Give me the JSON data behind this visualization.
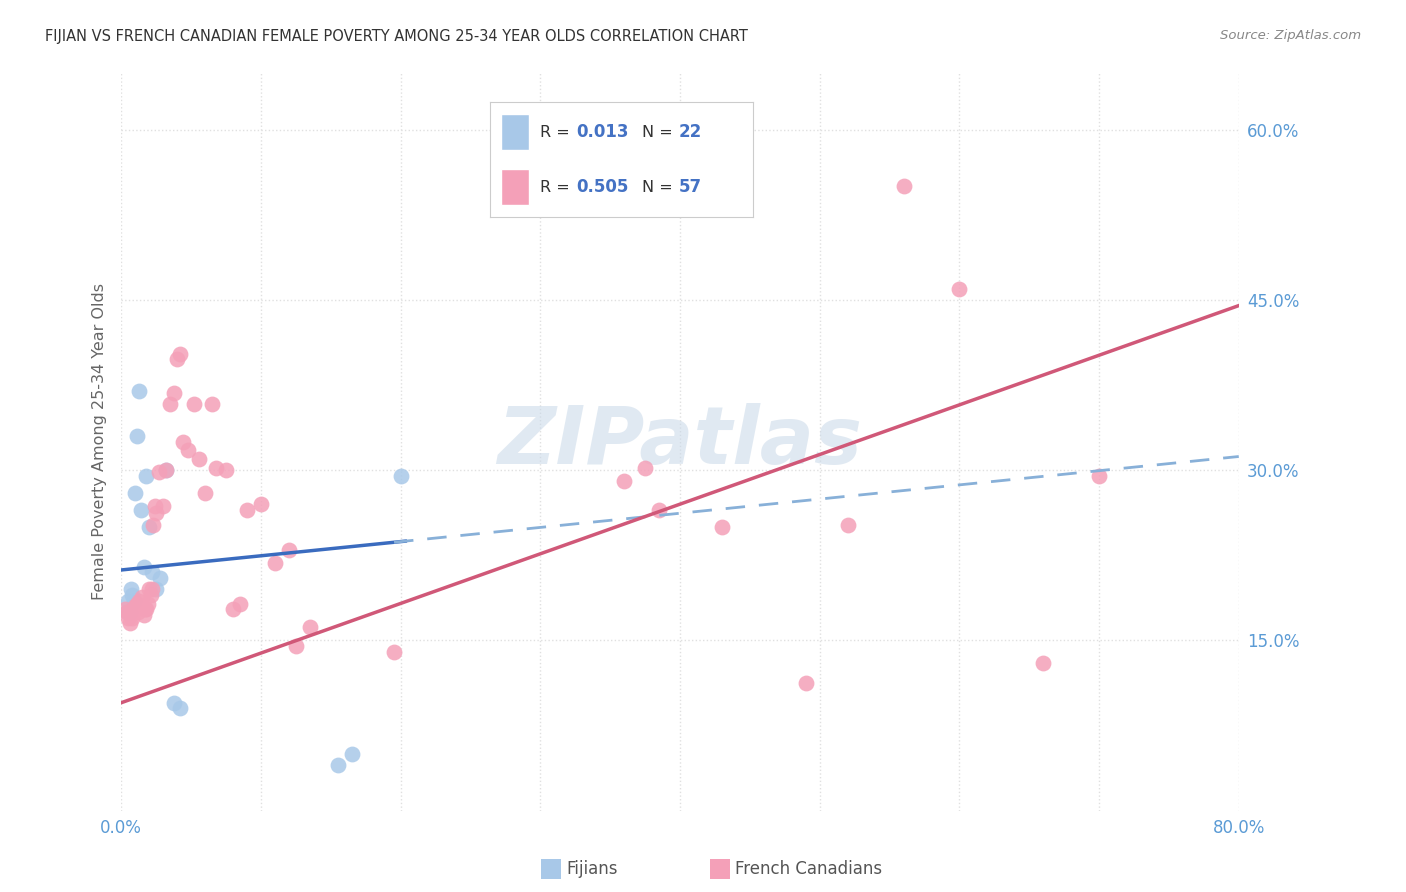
{
  "title": "FIJIAN VS FRENCH CANADIAN FEMALE POVERTY AMONG 25-34 YEAR OLDS CORRELATION CHART",
  "source": "Source: ZipAtlas.com",
  "ylabel": "Female Poverty Among 25-34 Year Olds",
  "xlim": [
    0,
    0.8
  ],
  "ylim": [
    0,
    0.65
  ],
  "xtick_vals": [
    0.0,
    0.1,
    0.2,
    0.3,
    0.4,
    0.5,
    0.6,
    0.7,
    0.8
  ],
  "xtick_labels": [
    "0.0%",
    "",
    "",
    "",
    "",
    "",
    "",
    "",
    "80.0%"
  ],
  "ytick_right_vals": [
    0.15,
    0.3,
    0.45,
    0.6
  ],
  "ytick_right_labels": [
    "15.0%",
    "30.0%",
    "45.0%",
    "60.0%"
  ],
  "fijian_color": "#a8c8e8",
  "french_color": "#f4a0b8",
  "fijian_line_color": "#3a6bbf",
  "french_line_color": "#d05878",
  "fijian_line_dash_color": "#88b0d8",
  "bg_color": "#ffffff",
  "grid_color": "#e0e0e0",
  "axis_color": "#5b9bd5",
  "title_color": "#333333",
  "watermark_text": "ZIPatlas",
  "watermark_color": "#c8d8e8",
  "legend_R_color": "#4472c4",
  "legend_fijian_R": "0.013",
  "legend_fijian_N": "22",
  "legend_french_R": "0.505",
  "legend_french_N": "57",
  "fijian_x": [
    0.004,
    0.005,
    0.006,
    0.007,
    0.008,
    0.009,
    0.01,
    0.011,
    0.013,
    0.014,
    0.016,
    0.018,
    0.02,
    0.022,
    0.025,
    0.028,
    0.032,
    0.038,
    0.042,
    0.2,
    0.155,
    0.165
  ],
  "fijian_y": [
    0.175,
    0.185,
    0.175,
    0.195,
    0.19,
    0.185,
    0.28,
    0.33,
    0.37,
    0.265,
    0.215,
    0.295,
    0.25,
    0.21,
    0.195,
    0.205,
    0.3,
    0.095,
    0.09,
    0.295,
    0.04,
    0.05
  ],
  "french_x": [
    0.003,
    0.004,
    0.005,
    0.006,
    0.007,
    0.008,
    0.009,
    0.01,
    0.011,
    0.012,
    0.013,
    0.014,
    0.015,
    0.016,
    0.017,
    0.018,
    0.019,
    0.02,
    0.021,
    0.022,
    0.023,
    0.024,
    0.025,
    0.027,
    0.03,
    0.032,
    0.035,
    0.038,
    0.04,
    0.042,
    0.044,
    0.048,
    0.052,
    0.056,
    0.06,
    0.065,
    0.068,
    0.075,
    0.08,
    0.085,
    0.09,
    0.1,
    0.11,
    0.12,
    0.125,
    0.135,
    0.195,
    0.36,
    0.375,
    0.385,
    0.43,
    0.49,
    0.52,
    0.56,
    0.6,
    0.66,
    0.7
  ],
  "french_y": [
    0.178,
    0.175,
    0.17,
    0.165,
    0.175,
    0.17,
    0.178,
    0.18,
    0.182,
    0.175,
    0.185,
    0.18,
    0.188,
    0.172,
    0.178,
    0.178,
    0.182,
    0.195,
    0.19,
    0.195,
    0.252,
    0.268,
    0.262,
    0.298,
    0.268,
    0.3,
    0.358,
    0.368,
    0.398,
    0.402,
    0.325,
    0.318,
    0.358,
    0.31,
    0.28,
    0.358,
    0.302,
    0.3,
    0.178,
    0.182,
    0.265,
    0.27,
    0.218,
    0.23,
    0.145,
    0.162,
    0.14,
    0.29,
    0.302,
    0.265,
    0.25,
    0.112,
    0.252,
    0.55,
    0.46,
    0.13,
    0.295
  ]
}
